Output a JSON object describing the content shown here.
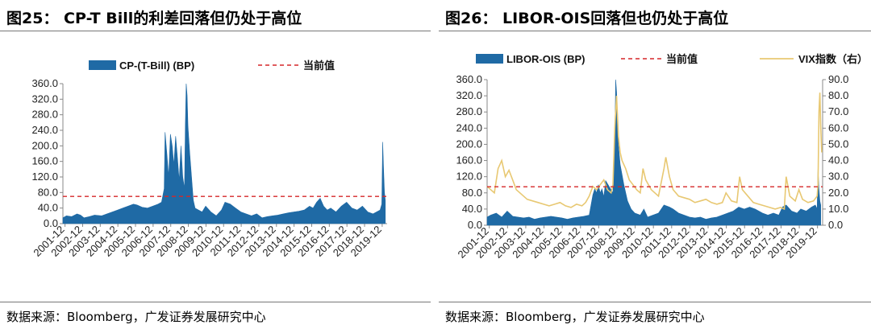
{
  "colors": {
    "area": "#1f6aa5",
    "current": "#d62728",
    "vix": "#e8c872",
    "axis": "#888888"
  },
  "chart_data": [
    {
      "type": "area",
      "title": "图25： CP-T Bill的利差回落但仍处于高位",
      "source": "数据来源：Bloomberg，广发证券发展研究中心",
      "legend": [
        {
          "label": "CP-(T-Bill) (BP)",
          "style": "area"
        },
        {
          "label": "当前值",
          "style": "dashed"
        }
      ],
      "x_tick_labels": [
        "2001-12",
        "2002-12",
        "2003-12",
        "2004-12",
        "2005-12",
        "2006-12",
        "2007-12",
        "2008-12",
        "2009-12",
        "2010-12",
        "2011-12",
        "2012-12",
        "2013-12",
        "2014-12",
        "2015-12",
        "2016-12",
        "2017-12",
        "2018-12",
        "2019-12"
      ],
      "y_tick_labels": [
        "0.0",
        "40.0",
        "80.0",
        "120.0",
        "160.0",
        "200.0",
        "240.0",
        "280.0",
        "320.0",
        "360.0"
      ],
      "ylim": [
        0,
        360
      ],
      "current_value": 70,
      "x_range": [
        2001.8,
        2020.2
      ],
      "series": [
        {
          "name": "CP-(T-Bill) (BP)",
          "x": [
            2001.8,
            2002.0,
            2002.3,
            2002.6,
            2002.8,
            2003.0,
            2003.3,
            2003.6,
            2004.0,
            2004.3,
            2004.6,
            2004.9,
            2005.2,
            2005.5,
            2005.8,
            2006.0,
            2006.3,
            2006.6,
            2006.9,
            2007.2,
            2007.4,
            2007.55,
            2007.6,
            2007.7,
            2007.8,
            2007.9,
            2008.0,
            2008.1,
            2008.2,
            2008.3,
            2008.4,
            2008.5,
            2008.6,
            2008.7,
            2008.75,
            2008.8,
            2008.85,
            2008.9,
            2009.0,
            2009.1,
            2009.2,
            2009.3,
            2009.5,
            2009.7,
            2009.9,
            2010.2,
            2010.5,
            2010.8,
            2011.0,
            2011.3,
            2011.6,
            2011.9,
            2012.2,
            2012.5,
            2012.8,
            2013.1,
            2013.4,
            2013.7,
            2014.0,
            2014.3,
            2014.6,
            2014.9,
            2015.2,
            2015.5,
            2015.8,
            2016.0,
            2016.2,
            2016.4,
            2016.6,
            2016.8,
            2017.0,
            2017.3,
            2017.6,
            2017.9,
            2018.2,
            2018.5,
            2018.8,
            2019.1,
            2019.4,
            2019.6,
            2019.8,
            2019.9,
            2019.95,
            2020.0,
            2020.05,
            2020.1
          ],
          "values": [
            15,
            20,
            18,
            25,
            22,
            15,
            18,
            22,
            20,
            25,
            30,
            35,
            40,
            45,
            50,
            48,
            42,
            40,
            45,
            50,
            55,
            90,
            235,
            180,
            120,
            230,
            200,
            150,
            225,
            170,
            110,
            200,
            120,
            90,
            250,
            360,
            330,
            250,
            180,
            120,
            60,
            40,
            35,
            30,
            45,
            30,
            20,
            35,
            55,
            50,
            40,
            30,
            25,
            20,
            25,
            15,
            18,
            20,
            22,
            25,
            28,
            30,
            32,
            35,
            45,
            40,
            55,
            65,
            45,
            35,
            40,
            30,
            45,
            55,
            40,
            35,
            45,
            30,
            25,
            30,
            35,
            50,
            210,
            140,
            80,
            60
          ]
        }
      ]
    },
    {
      "type": "area+line",
      "title": "图26： LIBOR-OIS回落但也仍处于高位",
      "source": "数据来源：Bloomberg，广发证券发展研究中心",
      "legend": [
        {
          "label": "LIBOR-OIS (BP)",
          "style": "area"
        },
        {
          "label": "当前值",
          "style": "dashed"
        },
        {
          "label": "VIX指数（右）",
          "style": "line"
        }
      ],
      "x_tick_labels": [
        "2001-12",
        "2002-12",
        "2003-12",
        "2004-12",
        "2005-12",
        "2006-12",
        "2007-12",
        "2008-12",
        "2009-12",
        "2010-12",
        "2011-12",
        "2012-12",
        "2013-12",
        "2014-12",
        "2015-12",
        "2016-12",
        "2017-12",
        "2018-12",
        "2019-12"
      ],
      "y_tick_labels": [
        "0.0",
        "40.0",
        "80.0",
        "120.0",
        "160.0",
        "200.0",
        "240.0",
        "280.0",
        "320.0",
        "360.0"
      ],
      "y2_tick_labels": [
        "0.0",
        "10.0",
        "20.0",
        "30.0",
        "40.0",
        "50.0",
        "60.0",
        "70.0",
        "80.0",
        "90.0"
      ],
      "ylim": [
        0,
        360
      ],
      "y2lim": [
        0,
        90
      ],
      "current_value": 95,
      "x_range": [
        2001.8,
        2020.2
      ],
      "series": [
        {
          "name": "LIBOR-OIS (BP)",
          "axis": "left",
          "x": [
            2001.8,
            2002.0,
            2002.3,
            2002.6,
            2002.9,
            2003.2,
            2003.5,
            2003.8,
            2004.1,
            2004.4,
            2004.7,
            2005.0,
            2005.3,
            2005.6,
            2005.9,
            2006.2,
            2006.5,
            2006.8,
            2007.1,
            2007.4,
            2007.6,
            2007.7,
            2007.8,
            2007.9,
            2008.0,
            2008.1,
            2008.2,
            2008.3,
            2008.5,
            2008.7,
            2008.8,
            2008.85,
            2008.9,
            2009.0,
            2009.1,
            2009.3,
            2009.5,
            2009.7,
            2009.9,
            2010.2,
            2010.4,
            2010.6,
            2010.9,
            2011.2,
            2011.5,
            2011.8,
            2012.0,
            2012.3,
            2012.6,
            2012.9,
            2013.2,
            2013.5,
            2013.8,
            2014.1,
            2014.4,
            2014.7,
            2015.0,
            2015.3,
            2015.6,
            2015.9,
            2016.2,
            2016.5,
            2016.7,
            2016.9,
            2017.2,
            2017.5,
            2017.8,
            2018.0,
            2018.2,
            2018.5,
            2018.8,
            2019.0,
            2019.3,
            2019.6,
            2019.8,
            2019.9,
            2019.95,
            2020.0,
            2020.05,
            2020.1
          ],
          "values": [
            20,
            25,
            30,
            20,
            35,
            22,
            20,
            18,
            20,
            15,
            18,
            20,
            22,
            20,
            18,
            15,
            18,
            20,
            22,
            25,
            75,
            90,
            80,
            100,
            80,
            90,
            70,
            110,
            95,
            80,
            200,
            360,
            330,
            200,
            150,
            100,
            60,
            40,
            30,
            25,
            40,
            20,
            25,
            30,
            50,
            45,
            40,
            30,
            25,
            20,
            18,
            20,
            15,
            18,
            20,
            25,
            30,
            35,
            45,
            40,
            45,
            40,
            35,
            30,
            25,
            30,
            25,
            45,
            50,
            35,
            30,
            40,
            35,
            45,
            50,
            40,
            140,
            90,
            60,
            50
          ]
        },
        {
          "name": "VIX指数（右）",
          "axis": "right",
          "x": [
            2001.8,
            2002.0,
            2002.2,
            2002.4,
            2002.6,
            2002.8,
            2003.0,
            2003.2,
            2003.4,
            2003.6,
            2003.8,
            2004.0,
            2004.3,
            2004.6,
            2004.9,
            2005.2,
            2005.5,
            2005.8,
            2006.1,
            2006.4,
            2006.7,
            2007.0,
            2007.2,
            2007.4,
            2007.6,
            2007.8,
            2008.0,
            2008.2,
            2008.4,
            2008.6,
            2008.7,
            2008.8,
            2008.9,
            2009.0,
            2009.1,
            2009.2,
            2009.4,
            2009.6,
            2009.8,
            2010.0,
            2010.2,
            2010.35,
            2010.5,
            2010.8,
            2011.0,
            2011.2,
            2011.5,
            2011.6,
            2011.8,
            2012.0,
            2012.3,
            2012.6,
            2012.9,
            2013.2,
            2013.5,
            2013.8,
            2014.1,
            2014.4,
            2014.7,
            2014.9,
            2015.2,
            2015.5,
            2015.65,
            2015.8,
            2016.1,
            2016.4,
            2016.7,
            2017.0,
            2017.3,
            2017.6,
            2017.9,
            2018.1,
            2018.2,
            2018.4,
            2018.7,
            2018.9,
            2019.1,
            2019.4,
            2019.7,
            2019.9,
            2019.95,
            2020.0,
            2020.05,
            2020.1,
            2020.15
          ],
          "values": [
            24,
            22,
            20,
            35,
            40,
            30,
            34,
            28,
            22,
            20,
            18,
            16,
            15,
            14,
            13,
            12,
            13,
            14,
            12,
            11,
            13,
            12,
            14,
            18,
            24,
            22,
            25,
            28,
            22,
            20,
            25,
            60,
            80,
            55,
            45,
            40,
            35,
            28,
            25,
            22,
            20,
            35,
            28,
            22,
            20,
            18,
            35,
            42,
            30,
            22,
            18,
            17,
            16,
            14,
            15,
            16,
            14,
            13,
            14,
            20,
            15,
            14,
            30,
            22,
            18,
            14,
            13,
            12,
            11,
            10,
            11,
            10,
            30,
            18,
            15,
            22,
            16,
            14,
            15,
            18,
            25,
            70,
            82,
            60,
            45
          ]
        }
      ]
    }
  ]
}
